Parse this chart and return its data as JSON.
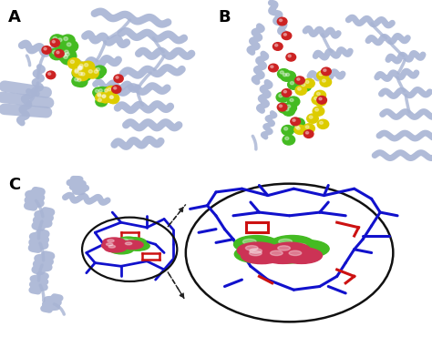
{
  "figure_width": 4.74,
  "figure_height": 3.7,
  "dpi": 100,
  "background_color": "#ffffff",
  "panel_labels": [
    "A",
    "B",
    "C"
  ],
  "panel_label_fontsize": 13,
  "panel_label_weight": "bold",
  "label_color": "#000000",
  "protein_color": "#a8b4d4",
  "protein_ribbon_lw": 7,
  "green_color": "#44bb22",
  "yellow_color": "#ddcc00",
  "red_color": "#cc2222",
  "pink_red_color": "#cc3355",
  "blue_stick_color": "#1111cc",
  "red_stick_color": "#cc1111",
  "ellipse_color": "#111111",
  "dashed_color": "#222222"
}
